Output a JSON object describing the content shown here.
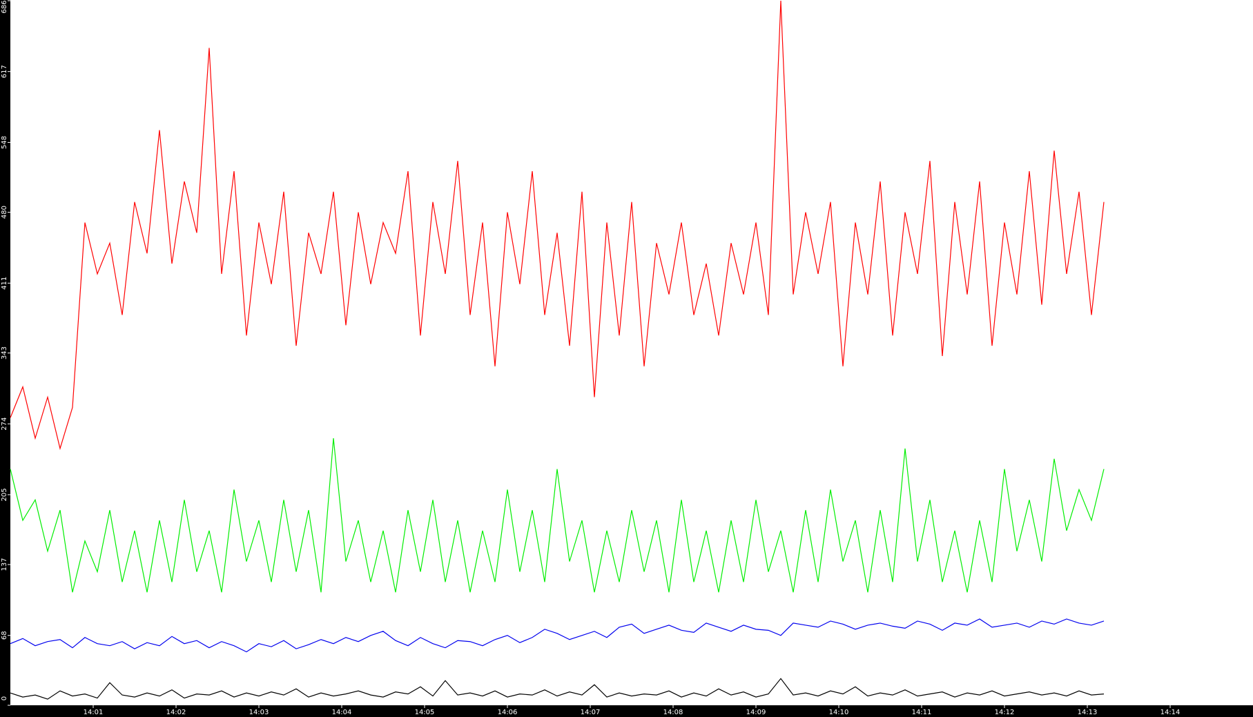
{
  "chart_data": {
    "type": "line",
    "x": [
      840,
      840.15,
      840.3,
      840.45,
      840.6,
      840.75,
      840.9,
      841.05,
      841.2,
      841.35,
      841.5,
      841.65,
      841.8,
      841.95,
      842.1,
      842.25,
      842.4,
      842.55,
      842.7,
      842.85,
      843,
      843.15,
      843.3,
      843.45,
      843.6,
      843.75,
      843.9,
      844.05,
      844.2,
      844.35,
      844.5,
      844.65,
      844.8,
      844.95,
      845.1,
      845.25,
      845.4,
      845.55,
      845.7,
      845.85,
      846,
      846.15,
      846.3,
      846.45,
      846.6,
      846.75,
      846.9,
      847.05,
      847.2,
      847.35,
      847.5,
      847.65,
      847.8,
      847.95,
      848.1,
      848.25,
      848.4,
      848.55,
      848.7,
      848.85,
      849,
      849.15,
      849.3,
      849.45,
      849.6,
      849.75,
      849.9,
      850.05,
      850.2,
      850.35,
      850.5,
      850.65,
      850.8,
      850.95,
      851.1,
      851.25,
      851.4,
      851.55,
      851.7,
      851.85,
      852,
      852.15,
      852.3,
      852.45,
      852.6,
      852.75,
      852.9,
      853.05,
      853.2
    ],
    "series": [
      {
        "color": "#ff0000",
        "values": [
          280,
          310,
          260,
          300,
          250,
          290,
          470,
          420,
          450,
          380,
          490,
          440,
          560,
          430,
          510,
          460,
          640,
          420,
          520,
          360,
          470,
          410,
          500,
          350,
          460,
          420,
          500,
          370,
          480,
          410,
          470,
          440,
          520,
          360,
          490,
          420,
          530,
          380,
          470,
          330,
          480,
          410,
          520,
          380,
          460,
          350,
          500,
          300,
          470,
          360,
          490,
          330,
          450,
          400,
          470,
          380,
          430,
          360,
          450,
          400,
          470,
          380,
          686,
          400,
          480,
          420,
          490,
          330,
          470,
          400,
          510,
          360,
          480,
          420,
          530,
          340,
          490,
          400,
          510,
          350,
          470,
          400,
          520,
          390,
          540,
          420,
          500,
          380,
          490
        ]
      },
      {
        "color": "#00ee00",
        "values": [
          230,
          180,
          200,
          150,
          190,
          110,
          160,
          130,
          190,
          120,
          170,
          110,
          180,
          120,
          200,
          130,
          170,
          110,
          210,
          140,
          180,
          120,
          200,
          130,
          190,
          110,
          260,
          140,
          180,
          120,
          170,
          110,
          190,
          130,
          200,
          120,
          180,
          110,
          170,
          120,
          210,
          130,
          190,
          120,
          230,
          140,
          180,
          110,
          170,
          120,
          190,
          130,
          180,
          110,
          200,
          120,
          170,
          110,
          180,
          120,
          200,
          130,
          170,
          110,
          190,
          120,
          210,
          140,
          180,
          110,
          190,
          120,
          250,
          140,
          200,
          120,
          170,
          110,
          180,
          120,
          230,
          150,
          200,
          140,
          240,
          170,
          210,
          180,
          230
        ]
      },
      {
        "color": "#0000ee",
        "values": [
          60,
          65,
          58,
          62,
          64,
          56,
          66,
          60,
          58,
          62,
          55,
          61,
          58,
          67,
          60,
          63,
          56,
          62,
          58,
          52,
          60,
          57,
          63,
          55,
          59,
          64,
          60,
          66,
          62,
          68,
          72,
          63,
          58,
          66,
          60,
          56,
          63,
          62,
          58,
          64,
          68,
          61,
          66,
          74,
          70,
          64,
          68,
          72,
          66,
          76,
          79,
          70,
          74,
          78,
          73,
          71,
          80,
          76,
          72,
          78,
          74,
          73,
          68,
          80,
          78,
          76,
          82,
          79,
          74,
          78,
          80,
          77,
          75,
          82,
          79,
          73,
          80,
          78,
          84,
          76,
          78,
          80,
          76,
          82,
          79,
          84,
          80,
          78,
          82
        ]
      },
      {
        "color": "#000000",
        "values": [
          12,
          8,
          10,
          6,
          14,
          9,
          11,
          7,
          22,
          10,
          8,
          12,
          9,
          15,
          7,
          11,
          10,
          14,
          8,
          12,
          9,
          13,
          10,
          16,
          8,
          12,
          9,
          11,
          14,
          10,
          8,
          13,
          11,
          18,
          9,
          24,
          10,
          12,
          9,
          14,
          8,
          11,
          10,
          15,
          9,
          13,
          10,
          20,
          8,
          12,
          9,
          11,
          10,
          14,
          8,
          12,
          9,
          16,
          10,
          13,
          8,
          11,
          26,
          10,
          12,
          9,
          14,
          11,
          18,
          9,
          12,
          10,
          15,
          9,
          11,
          13,
          8,
          12,
          10,
          14,
          9,
          11,
          13,
          10,
          12,
          9,
          14,
          10,
          11
        ]
      }
    ],
    "xlim": [
      840,
      855
    ],
    "xticks": [
      {
        "value": 841,
        "label": "14:01"
      },
      {
        "value": 842,
        "label": "14:02"
      },
      {
        "value": 843,
        "label": "14:03"
      },
      {
        "value": 844,
        "label": "14:04"
      },
      {
        "value": 845,
        "label": "14:05"
      },
      {
        "value": 846,
        "label": "14:06"
      },
      {
        "value": 847,
        "label": "14:07"
      },
      {
        "value": 848,
        "label": "14:08"
      },
      {
        "value": 849,
        "label": "14:09"
      },
      {
        "value": 850,
        "label": "14:10"
      },
      {
        "value": 851,
        "label": "14:11"
      },
      {
        "value": 852,
        "label": "14:12"
      },
      {
        "value": 853,
        "label": "14:13"
      },
      {
        "value": 854,
        "label": "14:14"
      }
    ],
    "ylim": [
      0,
      686
    ],
    "yticks": [
      0,
      68,
      137,
      205,
      274,
      343,
      411,
      480,
      548,
      617,
      686
    ]
  }
}
